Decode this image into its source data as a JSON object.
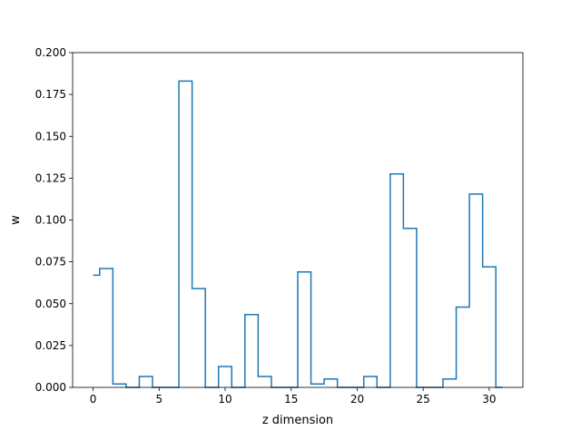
{
  "chart_data": {
    "type": "step",
    "xlabel": "z dimension",
    "ylabel": "w",
    "xlim": [
      -1.55,
      32.55
    ],
    "ylim": [
      0,
      0.2
    ],
    "x_ticks": [
      0,
      5,
      10,
      15,
      20,
      25,
      30
    ],
    "y_ticks": [
      0.0,
      0.025,
      0.05,
      0.075,
      0.1,
      0.125,
      0.15,
      0.175,
      0.2
    ],
    "x_tick_labels": [
      "0",
      "5",
      "10",
      "15",
      "20",
      "25",
      "30"
    ],
    "y_tick_labels": [
      "0.000",
      "0.025",
      "0.050",
      "0.075",
      "0.100",
      "0.125",
      "0.150",
      "0.175",
      "0.200"
    ],
    "grid": false,
    "color": "#1f77b4",
    "x": [
      0,
      1,
      2,
      3,
      4,
      5,
      6,
      7,
      8,
      9,
      10,
      11,
      12,
      13,
      14,
      15,
      16,
      17,
      18,
      19,
      20,
      21,
      22,
      23,
      24,
      25,
      26,
      27,
      28,
      29,
      30,
      31
    ],
    "values": [
      0.067,
      0.071,
      0.002,
      0.0,
      0.0065,
      0.0,
      0.0,
      0.183,
      0.059,
      0.0,
      0.0125,
      0.0,
      0.0435,
      0.0065,
      0.0,
      0.0,
      0.069,
      0.002,
      0.005,
      0.0,
      0.0,
      0.0065,
      0.0,
      0.1275,
      0.095,
      0.0,
      0.0,
      0.005,
      0.048,
      0.1155,
      0.072,
      0.0
    ]
  }
}
